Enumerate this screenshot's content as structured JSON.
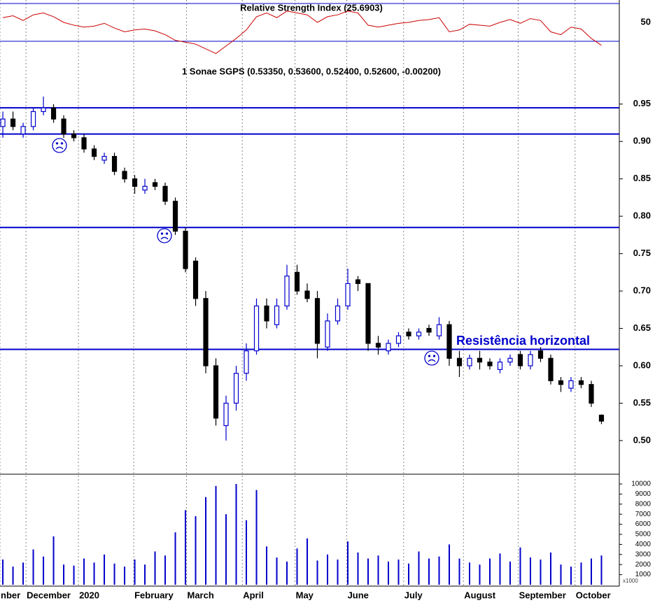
{
  "chart_data": [
    {
      "type": "line",
      "title": "Relative Strength Index (25.6903)",
      "color": "#cc0000",
      "values": [
        55,
        57,
        52,
        58,
        60,
        56,
        50,
        47,
        45,
        46,
        49,
        44,
        40,
        42,
        43,
        41,
        37,
        31,
        29,
        27,
        22,
        17,
        25,
        33,
        42,
        56,
        60,
        55,
        62,
        60,
        58,
        50,
        56,
        58,
        62,
        60,
        47,
        45,
        47,
        49,
        50,
        52,
        53,
        55,
        40,
        42,
        48,
        47,
        46,
        50,
        53,
        49,
        54,
        52,
        40,
        37,
        45,
        43,
        33,
        25.69
      ],
      "ylim": [
        10,
        73.7
      ],
      "yticks": [
        50
      ],
      "hlines": [
        70,
        30
      ],
      "hline_color": "#0000cc"
    },
    {
      "type": "candlestick",
      "title": "1 Sonae SGPS (0.53350, 0.53600, 0.52400, 0.52600, -0.00200)",
      "up_color": "#0000cc",
      "down_color": "#000000",
      "open": [
        0.92,
        0.93,
        0.91,
        0.92,
        0.94,
        0.945,
        0.93,
        0.91,
        0.905,
        0.89,
        0.875,
        0.88,
        0.86,
        0.85,
        0.835,
        0.845,
        0.84,
        0.82,
        0.78,
        0.74,
        0.69,
        0.6,
        0.52,
        0.55,
        0.59,
        0.62,
        0.68,
        0.655,
        0.68,
        0.725,
        0.7,
        0.69,
        0.625,
        0.66,
        0.68,
        0.715,
        0.71,
        0.63,
        0.62,
        0.63,
        0.645,
        0.64,
        0.65,
        0.64,
        0.655,
        0.61,
        0.6,
        0.61,
        0.605,
        0.595,
        0.605,
        0.615,
        0.6,
        0.62,
        0.61,
        0.58,
        0.57,
        0.58,
        0.575,
        0.534
      ],
      "high": [
        0.94,
        0.94,
        0.925,
        0.945,
        0.96,
        0.95,
        0.935,
        0.915,
        0.91,
        0.895,
        0.885,
        0.885,
        0.865,
        0.855,
        0.85,
        0.85,
        0.845,
        0.825,
        0.785,
        0.745,
        0.7,
        0.61,
        0.56,
        0.6,
        0.63,
        0.69,
        0.69,
        0.69,
        0.735,
        0.735,
        0.71,
        0.7,
        0.67,
        0.69,
        0.73,
        0.72,
        0.71,
        0.64,
        0.635,
        0.645,
        0.65,
        0.65,
        0.655,
        0.665,
        0.66,
        0.62,
        0.615,
        0.62,
        0.61,
        0.61,
        0.615,
        0.62,
        0.62,
        0.625,
        0.615,
        0.585,
        0.585,
        0.585,
        0.58,
        0.535
      ],
      "low": [
        0.905,
        0.915,
        0.905,
        0.915,
        0.935,
        0.925,
        0.905,
        0.9,
        0.885,
        0.875,
        0.87,
        0.855,
        0.845,
        0.83,
        0.83,
        0.835,
        0.815,
        0.775,
        0.725,
        0.68,
        0.59,
        0.52,
        0.5,
        0.54,
        0.58,
        0.615,
        0.65,
        0.65,
        0.675,
        0.695,
        0.685,
        0.61,
        0.62,
        0.655,
        0.675,
        0.7,
        0.62,
        0.615,
        0.615,
        0.625,
        0.635,
        0.635,
        0.64,
        0.635,
        0.6,
        0.585,
        0.595,
        0.595,
        0.595,
        0.59,
        0.6,
        0.595,
        0.595,
        0.605,
        0.575,
        0.565,
        0.565,
        0.57,
        0.545,
        0.522
      ],
      "close": [
        0.93,
        0.92,
        0.92,
        0.94,
        0.945,
        0.93,
        0.91,
        0.905,
        0.89,
        0.88,
        0.88,
        0.86,
        0.85,
        0.84,
        0.84,
        0.84,
        0.82,
        0.78,
        0.73,
        0.69,
        0.6,
        0.53,
        0.55,
        0.59,
        0.62,
        0.68,
        0.66,
        0.68,
        0.72,
        0.7,
        0.69,
        0.63,
        0.66,
        0.68,
        0.71,
        0.71,
        0.63,
        0.625,
        0.63,
        0.64,
        0.64,
        0.645,
        0.645,
        0.655,
        0.61,
        0.6,
        0.61,
        0.605,
        0.6,
        0.605,
        0.61,
        0.6,
        0.615,
        0.61,
        0.58,
        0.575,
        0.58,
        0.575,
        0.55,
        0.526
      ],
      "ylim": [
        0.455,
        1.005
      ],
      "yticks": [
        {
          "value": 0.5,
          "label": "0.50"
        },
        0.55,
        {
          "value": 0.6,
          "label": "0.60"
        },
        0.65,
        {
          "value": 0.7,
          "label": "0.70"
        },
        0.75,
        {
          "value": 0.8,
          "label": "0.80"
        },
        0.85,
        {
          "value": 0.9,
          "label": "0.90"
        },
        0.95
      ],
      "hlines": [
        0.945,
        0.91,
        0.785,
        0.622
      ],
      "hline_color": "#0000cc",
      "annotation": {
        "text": "Resistência horizontal",
        "color": "#0000cc"
      }
    },
    {
      "type": "bar",
      "color": "#0000cc",
      "values": [
        2500,
        1800,
        2200,
        3500,
        2800,
        4800,
        2000,
        1900,
        2600,
        2200,
        3000,
        2100,
        1800,
        2500,
        2000,
        3300,
        2900,
        5200,
        7400,
        6800,
        8700,
        9800,
        7000,
        10000,
        6400,
        9400,
        3800,
        2700,
        2300,
        3600,
        4600,
        2400,
        3000,
        2500,
        4300,
        3200,
        2600,
        2900,
        2300,
        2500,
        2100,
        3300,
        2600,
        2800,
        4000,
        2600,
        2200,
        2000,
        2600,
        3100,
        2300,
        3700,
        2700,
        2500,
        3200,
        2000,
        1800,
        2200,
        2600,
        2900
      ],
      "ylim": [
        0,
        10970
      ],
      "yticks": [
        1000,
        2000,
        3000,
        4000,
        5000,
        6000,
        7000,
        8000,
        9000,
        10000
      ],
      "unit_label": "x1000",
      "xlim": [
        -0.28,
        60.76
      ],
      "xticks": [
        {
          "value": -0.28,
          "label": "nber"
        },
        {
          "value": 2.28,
          "label": "December"
        },
        {
          "value": 7.45,
          "label": "2020"
        },
        {
          "value": 12.9,
          "label": "February"
        },
        {
          "value": 18.1,
          "label": "March"
        },
        {
          "value": 23.6,
          "label": "April"
        },
        {
          "value": 28.8,
          "label": "May"
        },
        {
          "value": 33.9,
          "label": "June"
        },
        {
          "value": 39.5,
          "label": "July"
        },
        {
          "value": 45.4,
          "label": "August"
        },
        {
          "value": 50.8,
          "label": "September"
        },
        {
          "value": 56.4,
          "label": "October"
        }
      ]
    }
  ]
}
